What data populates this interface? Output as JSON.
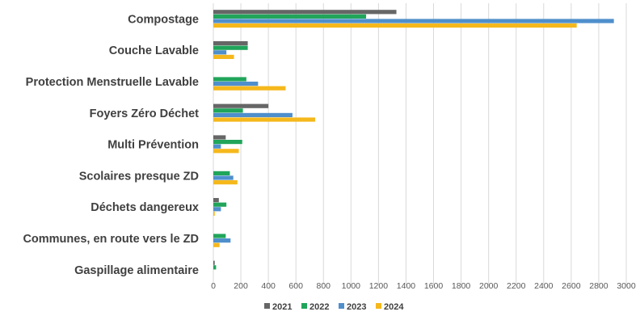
{
  "chart_data": {
    "type": "bar",
    "orientation": "horizontal",
    "title": "",
    "xlabel": "",
    "ylabel": "",
    "categories": [
      "Compostage",
      "Couche Lavable",
      "Protection Menstruelle Lavable",
      "Foyers Zéro Déchet",
      "Multi Prévention",
      "Scolaires presque ZD",
      "Déchets dangereux",
      "Communes, en route vers le ZD",
      "Gaspillage alimentaire"
    ],
    "series": [
      {
        "name": "2021",
        "color": "#666666",
        "values": [
          1330,
          250,
          0,
          400,
          90,
          0,
          40,
          0,
          10
        ]
      },
      {
        "name": "2022",
        "color": "#20a55a",
        "values": [
          1110,
          250,
          240,
          215,
          210,
          120,
          95,
          90,
          20
        ]
      },
      {
        "name": "2023",
        "color": "#4f8fcc",
        "values": [
          2910,
          95,
          325,
          575,
          55,
          145,
          55,
          125,
          0
        ]
      },
      {
        "name": "2024",
        "color": "#f5b81c",
        "values": [
          2640,
          150,
          525,
          740,
          185,
          175,
          10,
          45,
          0
        ]
      }
    ],
    "xlim": [
      0,
      3000
    ],
    "xticks": [
      "0",
      "200",
      "400",
      "600",
      "800",
      "1000",
      "1200",
      "1400",
      "1600",
      "1800",
      "2000",
      "2200",
      "2400",
      "2600",
      "2800",
      "3000"
    ],
    "grid": true,
    "legend_position": "bottom"
  }
}
